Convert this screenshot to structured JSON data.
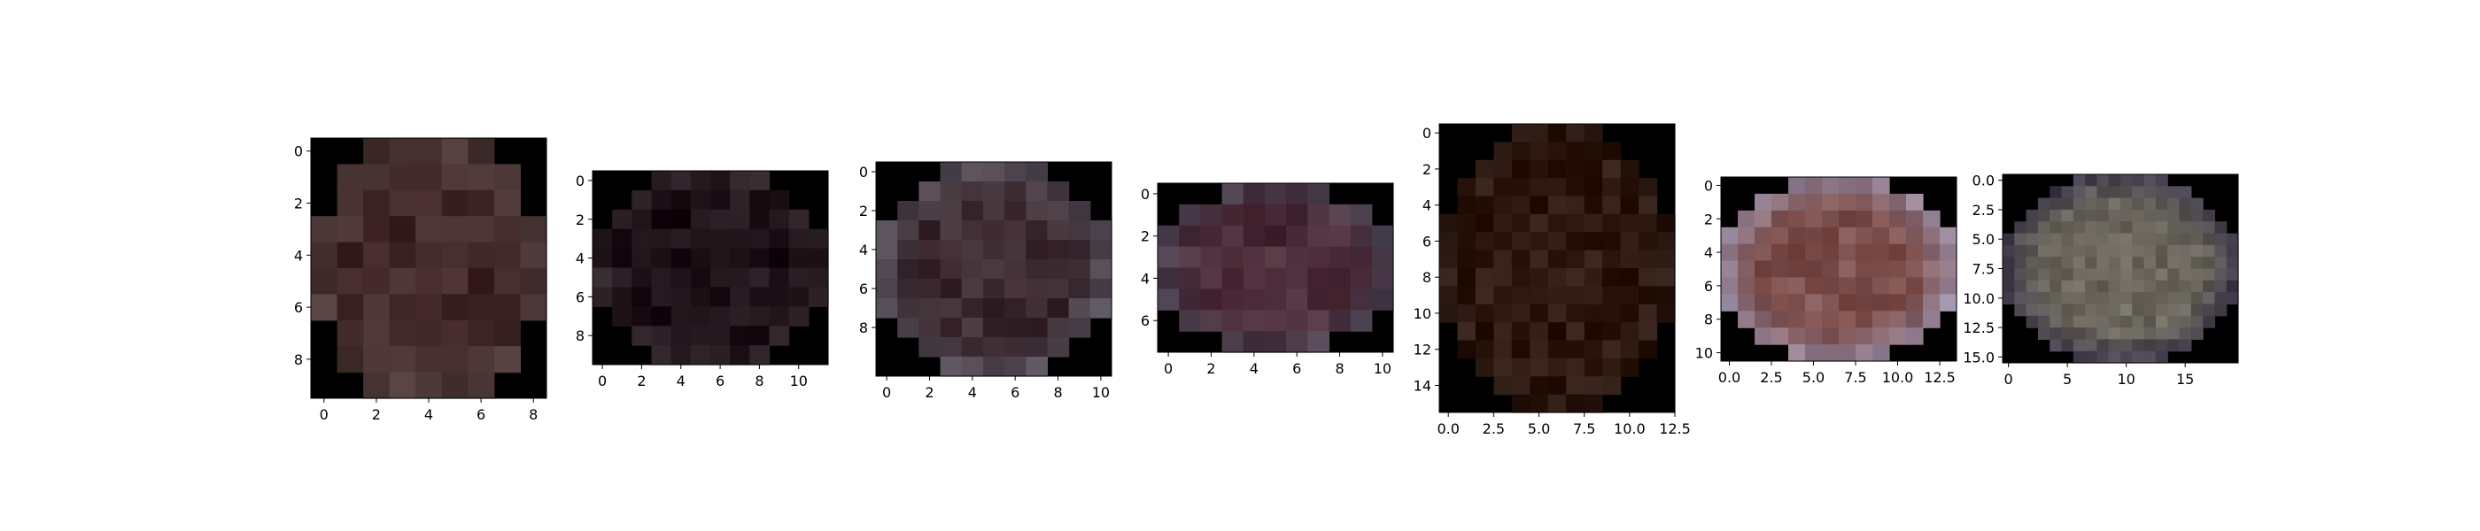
{
  "chart_data": [
    {
      "type": "heatmap",
      "rows": 10,
      "cols": 9,
      "xlim": [
        -0.5,
        8.5
      ],
      "ylim": [
        9.5,
        -0.5
      ],
      "xticks": [
        0,
        2,
        4,
        6,
        8
      ],
      "xtick_labels": [
        "0",
        "2",
        "4",
        "6",
        "8"
      ],
      "yticks": [
        0,
        2,
        4,
        6,
        8
      ],
      "ytick_labels": [
        "0",
        "2",
        "4",
        "6",
        "8"
      ],
      "base_color": "#3f2526",
      "edge_color": "#4a3a38",
      "background": "#000000",
      "region": "ellipse"
    },
    {
      "type": "heatmap",
      "rows": 10,
      "cols": 12,
      "xlim": [
        -0.5,
        11.5
      ],
      "ylim": [
        9.5,
        -0.5
      ],
      "xticks": [
        0,
        2,
        4,
        6,
        8,
        10
      ],
      "xtick_labels": [
        "0",
        "2",
        "4",
        "6",
        "8",
        "10"
      ],
      "yticks": [
        0,
        2,
        4,
        6,
        8
      ],
      "ytick_labels": [
        "0",
        "2",
        "4",
        "6",
        "8"
      ],
      "base_color": "#1c0f15",
      "edge_color": "#2e2328",
      "background": "#000000",
      "region": "ellipse"
    },
    {
      "type": "heatmap",
      "rows": 11,
      "cols": 11,
      "xlim": [
        -0.5,
        10.5
      ],
      "ylim": [
        10.5,
        -0.5
      ],
      "xticks": [
        0,
        2,
        4,
        6,
        8,
        10
      ],
      "xtick_labels": [
        "0",
        "2",
        "4",
        "6",
        "8",
        "10"
      ],
      "yticks": [
        0,
        2,
        4,
        6,
        8
      ],
      "ytick_labels": [
        "0",
        "2",
        "4",
        "6",
        "8"
      ],
      "base_color": "#3a272d",
      "edge_color": "#5a5560",
      "background": "#000000",
      "region": "ellipse"
    },
    {
      "type": "heatmap",
      "rows": 8,
      "cols": 11,
      "xlim": [
        -0.5,
        10.5
      ],
      "ylim": [
        7.5,
        -0.5
      ],
      "xticks": [
        0,
        2,
        4,
        6,
        8,
        10
      ],
      "xtick_labels": [
        "0",
        "2",
        "4",
        "6",
        "8",
        "10"
      ],
      "yticks": [
        0,
        2,
        4,
        6
      ],
      "ytick_labels": [
        "0",
        "2",
        "4",
        "6"
      ],
      "base_color": "#4b2a36",
      "edge_color": "#4e4858",
      "background": "#000000",
      "region": "ellipse"
    },
    {
      "type": "heatmap",
      "rows": 16,
      "cols": 13,
      "xlim": [
        -0.5,
        12.5
      ],
      "ylim": [
        15.5,
        -0.5
      ],
      "xticks": [
        0,
        2.5,
        5,
        7.5,
        10,
        12.5
      ],
      "xtick_labels": [
        "0.0",
        "2.5",
        "5.0",
        "7.5",
        "10.0",
        "12.5"
      ],
      "yticks": [
        0,
        2,
        4,
        6,
        8,
        10,
        12,
        14
      ],
      "ytick_labels": [
        "0",
        "2",
        "4",
        "6",
        "8",
        "10",
        "12",
        "14"
      ],
      "base_color": "#2e170e",
      "edge_color": "#2a1a14",
      "background": "#000000",
      "region": "ellipse"
    },
    {
      "type": "heatmap",
      "rows": 11,
      "cols": 14,
      "xlim": [
        -0.5,
        13.5
      ],
      "ylim": [
        10.5,
        -0.5
      ],
      "xticks": [
        0,
        2.5,
        5,
        7.5,
        10,
        12.5
      ],
      "xtick_labels": [
        "0.0",
        "2.5",
        "5.0",
        "7.5",
        "10.0",
        "12.5"
      ],
      "yticks": [
        0,
        2,
        4,
        6,
        8,
        10
      ],
      "ytick_labels": [
        "0",
        "2",
        "4",
        "6",
        "8",
        "10"
      ],
      "base_color": "#7a4a45",
      "edge_color": "#9a8fa8",
      "background": "#000000",
      "region": "ellipse"
    },
    {
      "type": "heatmap",
      "rows": 16,
      "cols": 20,
      "xlim": [
        -0.5,
        19.5
      ],
      "ylim": [
        15.5,
        -0.5
      ],
      "xticks": [
        0,
        5,
        10,
        15
      ],
      "xtick_labels": [
        "0",
        "5",
        "10",
        "15"
      ],
      "yticks": [
        0,
        2.5,
        5,
        7.5,
        10,
        12.5,
        15
      ],
      "ytick_labels": [
        "0.0",
        "2.5",
        "5.0",
        "7.5",
        "10.0",
        "12.5",
        "15.0"
      ],
      "base_color": "#6e6a5e",
      "edge_color": "#3a3448",
      "background": "#000000",
      "region": "ellipse"
    }
  ]
}
